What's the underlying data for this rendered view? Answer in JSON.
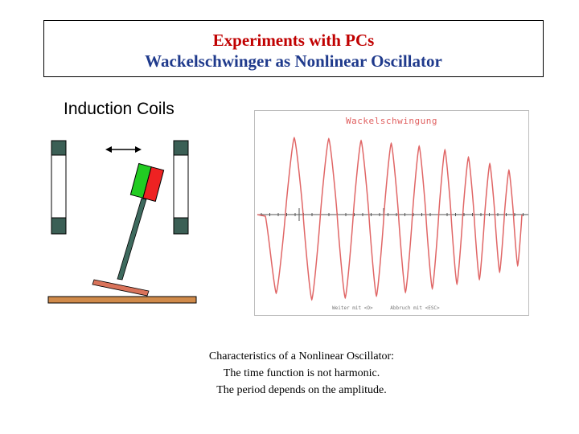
{
  "header": {
    "line1": "Experiments with PCs",
    "line2": "Wackelschwinger as Nonlinear Oscillator"
  },
  "diagram": {
    "coils_label": "Induction Coils"
  },
  "plot": {
    "title": "Wackelschwingung",
    "footer": "Weiter mit <O>      Abbruch mit <ESC>",
    "trace_color": "#e06666",
    "axis_color": "#555555",
    "amplitude_peaks": [
      -0.85,
      0.83,
      -0.92,
      0.82,
      -0.9,
      0.8,
      -0.88,
      0.77,
      -0.84,
      0.74,
      -0.8,
      0.7,
      -0.75,
      0.62,
      -0.7,
      0.55,
      -0.62,
      0.48,
      -0.55
    ]
  },
  "caption": {
    "line1": "Characteristics of a Nonlinear  Oscillator:",
    "line2": "The time function is not harmonic.",
    "line3": "The period depends on the amplitude."
  }
}
